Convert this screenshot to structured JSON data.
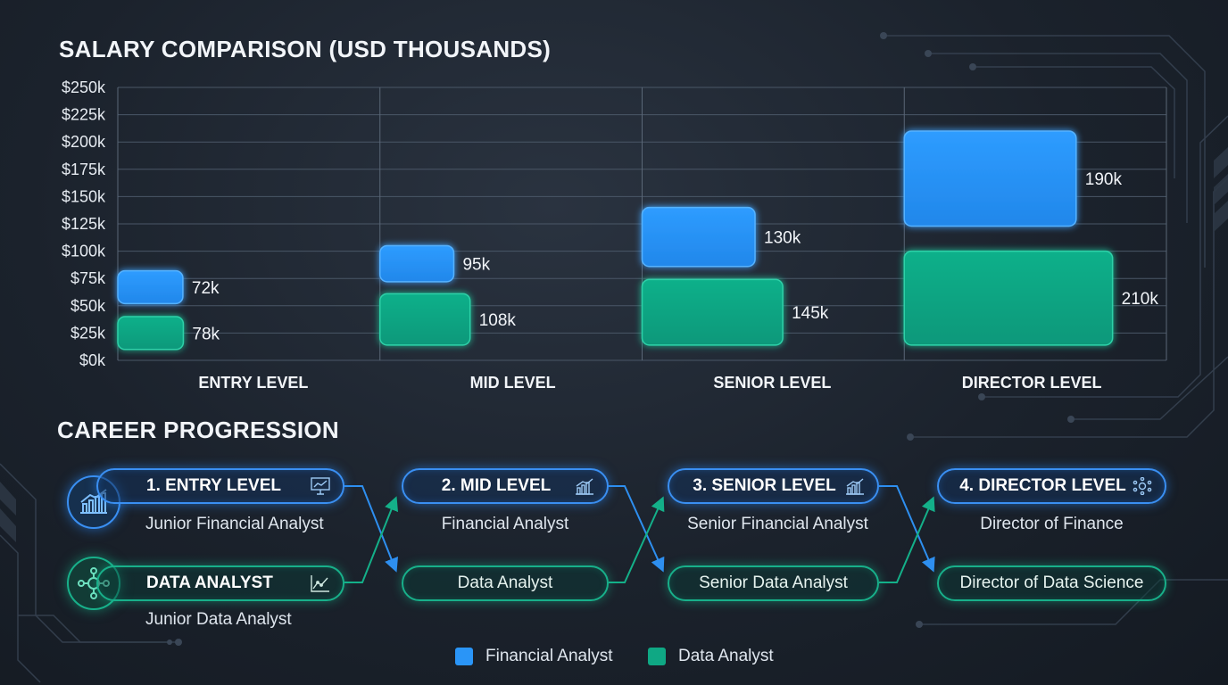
{
  "chart_title": "SALARY COMPARISON (USD THOUSANDS)",
  "progress_title": "CAREER PROGRESSION",
  "colors": {
    "financial": "#2a95f7",
    "data": "#0fa884"
  },
  "chart_data": {
    "type": "bar",
    "title": "SALARY COMPARISON (USD THOUSANDS)",
    "categories": [
      "ENTRY LEVEL",
      "MID LEVEL",
      "SENIOR LEVEL",
      "DIRECTOR LEVEL"
    ],
    "series": [
      {
        "name": "Financial Analyst",
        "values": [
          72,
          95,
          130,
          190
        ],
        "labels": [
          "72k",
          "95k",
          "130k",
          "190k"
        ]
      },
      {
        "name": "Data Analyst",
        "values": [
          78,
          108,
          145,
          210
        ],
        "labels": [
          "78k",
          "108k",
          "145k",
          "210k"
        ]
      }
    ],
    "y_ticks": [
      "$0k",
      "$25k",
      "$50k",
      "$75k",
      "$100k",
      "$125k",
      "$150k",
      "$175k",
      "$200k",
      "$225k",
      "$250k"
    ],
    "ylim": [
      0,
      250
    ],
    "grid": true
  },
  "progression": {
    "financial": [
      {
        "level": "1. ENTRY LEVEL",
        "role": "Junior Financial Analyst"
      },
      {
        "level": "2. MID LEVEL",
        "role": "Financial Analyst"
      },
      {
        "level": "3. SENIOR LEVEL",
        "role": "Senior Financial Analyst"
      },
      {
        "level": "4. DIRECTOR LEVEL",
        "role": "Director of Finance"
      }
    ],
    "data": [
      {
        "label": "DATA ANALYST",
        "role": "Junior Data Analyst"
      },
      {
        "label": "Data Analyst"
      },
      {
        "label": "Senior Data Analyst"
      },
      {
        "label": "Director of Data Science"
      }
    ]
  },
  "legend": [
    {
      "label": "Financial Analyst",
      "color": "#2a95f7"
    },
    {
      "label": "Data Analyst",
      "color": "#0fa884"
    }
  ]
}
